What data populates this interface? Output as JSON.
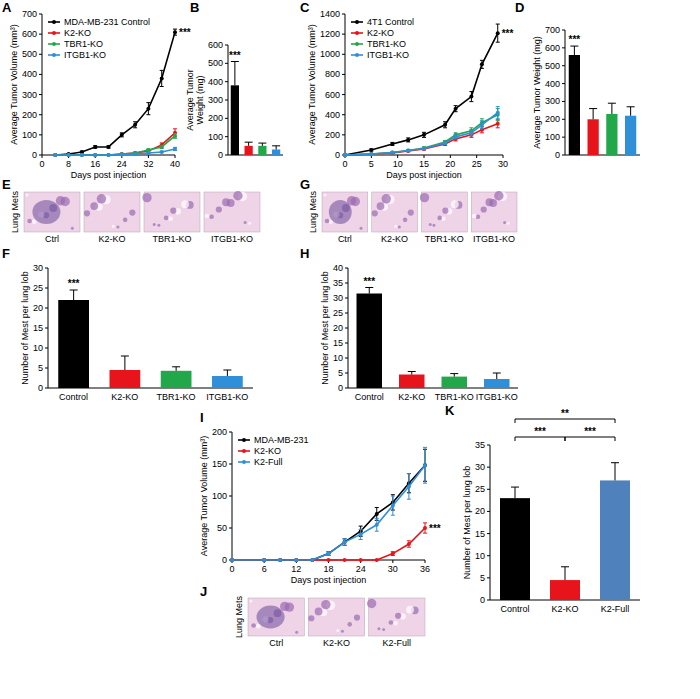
{
  "chart_data": [
    {
      "panel": "A",
      "type": "line",
      "x": [
        4,
        8,
        12,
        16,
        20,
        24,
        28,
        32,
        36,
        40
      ],
      "xlim": [
        0,
        40
      ],
      "xticks": [
        0,
        8,
        16,
        24,
        32,
        40
      ],
      "ylim": [
        0,
        700
      ],
      "yticks": [
        0,
        100,
        200,
        300,
        400,
        500,
        600,
        700
      ],
      "x_label": "Days post injection",
      "y_label": "Average Tumor Volume (mm³)",
      "legend": "upper left",
      "series": [
        {
          "name": "MDA-MB-231 Control",
          "color": "#000000",
          "marker": "circle",
          "values": [
            0,
            5,
            15,
            40,
            40,
            100,
            150,
            230,
            380,
            610
          ],
          "errors": [
            0,
            2,
            4,
            6,
            6,
            10,
            15,
            30,
            40,
            15
          ]
        },
        {
          "name": "K2-KO",
          "color": "#e8141b",
          "marker": "circle",
          "values": [
            0,
            0,
            0,
            0,
            0,
            5,
            10,
            20,
            50,
            110
          ],
          "errors": [
            0,
            0,
            0,
            0,
            0,
            2,
            4,
            6,
            10,
            20
          ]
        },
        {
          "name": "TBR1-KO",
          "color": "#22a84a",
          "marker": "circle",
          "values": [
            0,
            0,
            0,
            0,
            0,
            5,
            10,
            25,
            40,
            95
          ],
          "errors": [
            0,
            0,
            0,
            0,
            0,
            2,
            3,
            5,
            8,
            12
          ]
        },
        {
          "name": "ITGB1-KO",
          "color": "#2f8fd8",
          "marker": "circle",
          "values": [
            0,
            0,
            0,
            0,
            0,
            2,
            5,
            10,
            15,
            30
          ],
          "errors": [
            0,
            0,
            0,
            0,
            0,
            1,
            2,
            3,
            4,
            8
          ]
        }
      ],
      "annotations": [
        {
          "text": "***",
          "series": "MDA-MB-231 Control"
        }
      ]
    },
    {
      "panel": "B",
      "type": "bar",
      "y_label": "Average Tumor Weight (mg)",
      "categories": [
        null,
        null,
        null,
        null
      ],
      "values": [
        380,
        50,
        50,
        30
      ],
      "errors": [
        130,
        20,
        15,
        20
      ],
      "colors": [
        "#000000",
        "#e8141b",
        "#22a84a",
        "#2f8fd8"
      ],
      "ylim": [
        0,
        600
      ],
      "yticks": [
        0,
        100,
        200,
        300,
        400,
        500,
        600
      ],
      "annotations": [
        {
          "text": "***",
          "bar": 0
        }
      ]
    },
    {
      "panel": "C",
      "type": "line",
      "x": [
        0,
        5,
        9,
        12,
        15,
        19,
        21,
        24,
        26,
        29
      ],
      "xlim": [
        0,
        30
      ],
      "xticks": [
        0,
        5,
        10,
        15,
        20,
        25,
        30
      ],
      "ylim": [
        0,
        1400
      ],
      "yticks": [
        0,
        200,
        400,
        600,
        800,
        1000,
        1200,
        1400
      ],
      "x_label": "Days post injection",
      "y_label": "Average Tumor Volume (mm³)",
      "legend": "upper left",
      "series": [
        {
          "name": "4T1 Control",
          "color": "#000000",
          "marker": "circle",
          "values": [
            0,
            50,
            110,
            150,
            200,
            300,
            460,
            580,
            900,
            1210
          ],
          "errors": [
            0,
            10,
            15,
            20,
            25,
            30,
            30,
            50,
            40,
            90
          ]
        },
        {
          "name": "K2-KO",
          "color": "#e8141b",
          "marker": "circle",
          "values": [
            0,
            10,
            20,
            40,
            60,
            110,
            160,
            200,
            250,
            310
          ],
          "errors": [
            0,
            3,
            5,
            8,
            10,
            15,
            20,
            25,
            30,
            40
          ]
        },
        {
          "name": "TBR1-KO",
          "color": "#22a84a",
          "marker": "circle",
          "values": [
            0,
            10,
            25,
            45,
            70,
            130,
            200,
            240,
            320,
            400
          ],
          "errors": [
            0,
            3,
            5,
            8,
            10,
            15,
            20,
            30,
            40,
            60
          ]
        },
        {
          "name": "ITGB1-KO",
          "color": "#2f8fd8",
          "marker": "circle",
          "values": [
            0,
            10,
            25,
            45,
            65,
            120,
            180,
            220,
            300,
            420
          ],
          "errors": [
            0,
            3,
            5,
            8,
            10,
            15,
            20,
            30,
            40,
            60
          ]
        }
      ],
      "annotations": [
        {
          "text": "***",
          "series": "4T1 Control"
        }
      ]
    },
    {
      "panel": "D",
      "type": "bar",
      "y_label": "Average Tumor Weight (mg)",
      "categories": [
        null,
        null,
        null,
        null
      ],
      "values": [
        560,
        200,
        230,
        220
      ],
      "errors": [
        50,
        60,
        60,
        50
      ],
      "colors": [
        "#000000",
        "#e8141b",
        "#22a84a",
        "#2f8fd8"
      ],
      "ylim": [
        0,
        700
      ],
      "yticks": [
        0,
        100,
        200,
        300,
        400,
        500,
        600,
        700
      ],
      "annotations": [
        {
          "text": "***",
          "bar": 0
        }
      ]
    },
    {
      "panel": "E",
      "type": "image",
      "row_label": "Lung Mets",
      "categories": [
        "Ctrl",
        "K2-KO",
        "TBR1-KO",
        "ITGB1-KO"
      ]
    },
    {
      "panel": "F",
      "type": "bar",
      "y_label": "Number of Mest per lung lob",
      "categories": [
        "Control",
        "K2-KO",
        "TBR1-KO",
        "ITGB1-KO"
      ],
      "values": [
        22,
        4.5,
        4.3,
        3
      ],
      "errors": [
        2.5,
        3.5,
        1,
        1.5
      ],
      "colors": [
        "#000000",
        "#e8141b",
        "#22a84a",
        "#2f8fd8"
      ],
      "ylim": [
        0,
        30
      ],
      "yticks": [
        0,
        5,
        10,
        15,
        20,
        25,
        30
      ],
      "annotations": [
        {
          "text": "***",
          "bar": 0
        }
      ]
    },
    {
      "panel": "G",
      "type": "image",
      "row_label": "Lung Mets",
      "categories": [
        "Ctrl",
        "K2-KO",
        "TBR1-KO",
        "ITGB1-KO"
      ]
    },
    {
      "panel": "H",
      "type": "bar",
      "y_label": "Number of Mest per lung lob",
      "categories": [
        "Control",
        "K2-KO",
        "TBR1-KO",
        "ITGB1-KO"
      ],
      "values": [
        31.5,
        4.5,
        3.8,
        3
      ],
      "errors": [
        2,
        1,
        1,
        2
      ],
      "colors": [
        "#000000",
        "#e8141b",
        "#22a84a",
        "#2f8fd8"
      ],
      "ylim": [
        0,
        40
      ],
      "yticks": [
        0,
        5,
        10,
        15,
        20,
        25,
        30,
        35,
        40
      ],
      "annotations": [
        {
          "text": "***",
          "bar": 0
        }
      ]
    },
    {
      "panel": "I",
      "type": "line",
      "x": [
        0,
        6,
        9,
        12,
        15,
        18,
        21,
        24,
        27,
        30,
        33,
        36
      ],
      "xlim": [
        0,
        36
      ],
      "xticks": [
        0,
        6,
        12,
        18,
        24,
        30,
        36
      ],
      "ylim": [
        0,
        200
      ],
      "yticks": [
        0,
        50,
        100,
        150,
        200
      ],
      "x_label": "Days post injection",
      "y_label": "Average Tumor Volume (mm³)",
      "legend": "upper left",
      "series": [
        {
          "name": "MDA-MB-231",
          "color": "#000000",
          "marker": "circle",
          "values": [
            0,
            0,
            0,
            0,
            0,
            10,
            28,
            45,
            72,
            90,
            120,
            148
          ],
          "errors": [
            0,
            0,
            0,
            0,
            0,
            3,
            5,
            8,
            10,
            12,
            15,
            25
          ]
        },
        {
          "name": "K2-KO",
          "color": "#e8141b",
          "marker": "circle",
          "values": [
            0,
            0,
            0,
            0,
            0,
            0,
            0,
            0,
            0,
            10,
            25,
            50
          ],
          "errors": [
            0,
            0,
            0,
            0,
            0,
            0,
            0,
            0,
            0,
            3,
            5,
            8
          ]
        },
        {
          "name": "K2-Full",
          "color": "#2f8fd8",
          "marker": "circle",
          "values": [
            0,
            0,
            0,
            0,
            0,
            10,
            28,
            40,
            55,
            85,
            115,
            148
          ],
          "errors": [
            0,
            0,
            0,
            0,
            0,
            3,
            5,
            8,
            10,
            15,
            20,
            28
          ]
        }
      ],
      "annotations": [
        {
          "text": "***",
          "series": "K2-KO"
        }
      ]
    },
    {
      "panel": "J",
      "type": "image",
      "row_label": "Lung Mets",
      "categories": [
        "Ctrl",
        "K2-KO",
        "K2-Full"
      ]
    },
    {
      "panel": "K",
      "type": "bar",
      "y_label": "Number of Mest per lung lob",
      "categories": [
        "Control",
        "K2-KO",
        "K2-Full"
      ],
      "values": [
        23,
        4.5,
        27
      ],
      "errors": [
        2.5,
        3,
        4
      ],
      "colors": [
        "#000000",
        "#e8141b",
        "#4f81bd"
      ],
      "ylim": [
        0,
        35
      ],
      "yticks": [
        0,
        5,
        10,
        15,
        20,
        25,
        30,
        35
      ],
      "brackets": [
        {
          "from": "Control",
          "to": "K2-KO",
          "text": "***"
        },
        {
          "from": "K2-KO",
          "to": "K2-Full",
          "text": "***"
        },
        {
          "from": "Control",
          "to": "K2-Full",
          "text": "**"
        }
      ]
    }
  ]
}
